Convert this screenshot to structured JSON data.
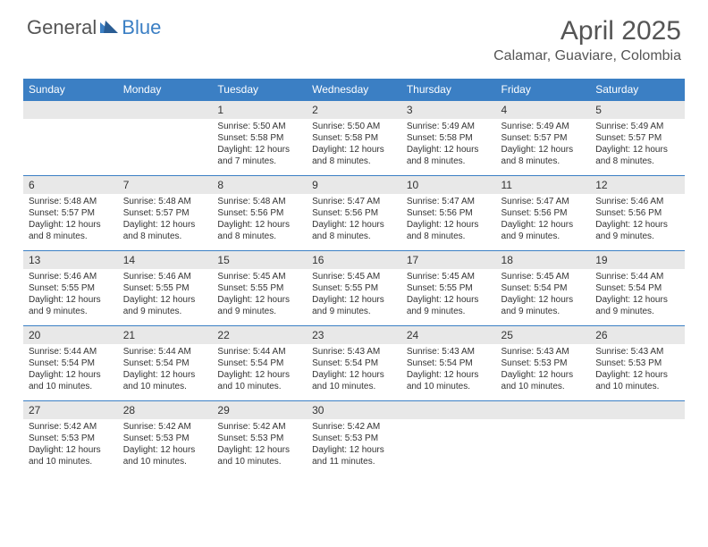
{
  "logo": {
    "general": "General",
    "blue": "Blue"
  },
  "title": "April 2025",
  "location": "Calamar, Guaviare, Colombia",
  "colors": {
    "header_bg": "#3b7fc4",
    "daynum_bg": "#e8e8e8",
    "border": "#3b7fc4",
    "text": "#333333",
    "title_color": "#555555"
  },
  "day_names": [
    "Sunday",
    "Monday",
    "Tuesday",
    "Wednesday",
    "Thursday",
    "Friday",
    "Saturday"
  ],
  "weeks": [
    [
      null,
      null,
      {
        "n": "1",
        "sr": "5:50 AM",
        "ss": "5:58 PM",
        "dl": "12 hours and 7 minutes."
      },
      {
        "n": "2",
        "sr": "5:50 AM",
        "ss": "5:58 PM",
        "dl": "12 hours and 8 minutes."
      },
      {
        "n": "3",
        "sr": "5:49 AM",
        "ss": "5:58 PM",
        "dl": "12 hours and 8 minutes."
      },
      {
        "n": "4",
        "sr": "5:49 AM",
        "ss": "5:57 PM",
        "dl": "12 hours and 8 minutes."
      },
      {
        "n": "5",
        "sr": "5:49 AM",
        "ss": "5:57 PM",
        "dl": "12 hours and 8 minutes."
      }
    ],
    [
      {
        "n": "6",
        "sr": "5:48 AM",
        "ss": "5:57 PM",
        "dl": "12 hours and 8 minutes."
      },
      {
        "n": "7",
        "sr": "5:48 AM",
        "ss": "5:57 PM",
        "dl": "12 hours and 8 minutes."
      },
      {
        "n": "8",
        "sr": "5:48 AM",
        "ss": "5:56 PM",
        "dl": "12 hours and 8 minutes."
      },
      {
        "n": "9",
        "sr": "5:47 AM",
        "ss": "5:56 PM",
        "dl": "12 hours and 8 minutes."
      },
      {
        "n": "10",
        "sr": "5:47 AM",
        "ss": "5:56 PM",
        "dl": "12 hours and 8 minutes."
      },
      {
        "n": "11",
        "sr": "5:47 AM",
        "ss": "5:56 PM",
        "dl": "12 hours and 9 minutes."
      },
      {
        "n": "12",
        "sr": "5:46 AM",
        "ss": "5:56 PM",
        "dl": "12 hours and 9 minutes."
      }
    ],
    [
      {
        "n": "13",
        "sr": "5:46 AM",
        "ss": "5:55 PM",
        "dl": "12 hours and 9 minutes."
      },
      {
        "n": "14",
        "sr": "5:46 AM",
        "ss": "5:55 PM",
        "dl": "12 hours and 9 minutes."
      },
      {
        "n": "15",
        "sr": "5:45 AM",
        "ss": "5:55 PM",
        "dl": "12 hours and 9 minutes."
      },
      {
        "n": "16",
        "sr": "5:45 AM",
        "ss": "5:55 PM",
        "dl": "12 hours and 9 minutes."
      },
      {
        "n": "17",
        "sr": "5:45 AM",
        "ss": "5:55 PM",
        "dl": "12 hours and 9 minutes."
      },
      {
        "n": "18",
        "sr": "5:45 AM",
        "ss": "5:54 PM",
        "dl": "12 hours and 9 minutes."
      },
      {
        "n": "19",
        "sr": "5:44 AM",
        "ss": "5:54 PM",
        "dl": "12 hours and 9 minutes."
      }
    ],
    [
      {
        "n": "20",
        "sr": "5:44 AM",
        "ss": "5:54 PM",
        "dl": "12 hours and 10 minutes."
      },
      {
        "n": "21",
        "sr": "5:44 AM",
        "ss": "5:54 PM",
        "dl": "12 hours and 10 minutes."
      },
      {
        "n": "22",
        "sr": "5:44 AM",
        "ss": "5:54 PM",
        "dl": "12 hours and 10 minutes."
      },
      {
        "n": "23",
        "sr": "5:43 AM",
        "ss": "5:54 PM",
        "dl": "12 hours and 10 minutes."
      },
      {
        "n": "24",
        "sr": "5:43 AM",
        "ss": "5:54 PM",
        "dl": "12 hours and 10 minutes."
      },
      {
        "n": "25",
        "sr": "5:43 AM",
        "ss": "5:53 PM",
        "dl": "12 hours and 10 minutes."
      },
      {
        "n": "26",
        "sr": "5:43 AM",
        "ss": "5:53 PM",
        "dl": "12 hours and 10 minutes."
      }
    ],
    [
      {
        "n": "27",
        "sr": "5:42 AM",
        "ss": "5:53 PM",
        "dl": "12 hours and 10 minutes."
      },
      {
        "n": "28",
        "sr": "5:42 AM",
        "ss": "5:53 PM",
        "dl": "12 hours and 10 minutes."
      },
      {
        "n": "29",
        "sr": "5:42 AM",
        "ss": "5:53 PM",
        "dl": "12 hours and 10 minutes."
      },
      {
        "n": "30",
        "sr": "5:42 AM",
        "ss": "5:53 PM",
        "dl": "12 hours and 11 minutes."
      },
      null,
      null,
      null
    ]
  ],
  "labels": {
    "sunrise": "Sunrise:",
    "sunset": "Sunset:",
    "daylight": "Daylight:"
  }
}
